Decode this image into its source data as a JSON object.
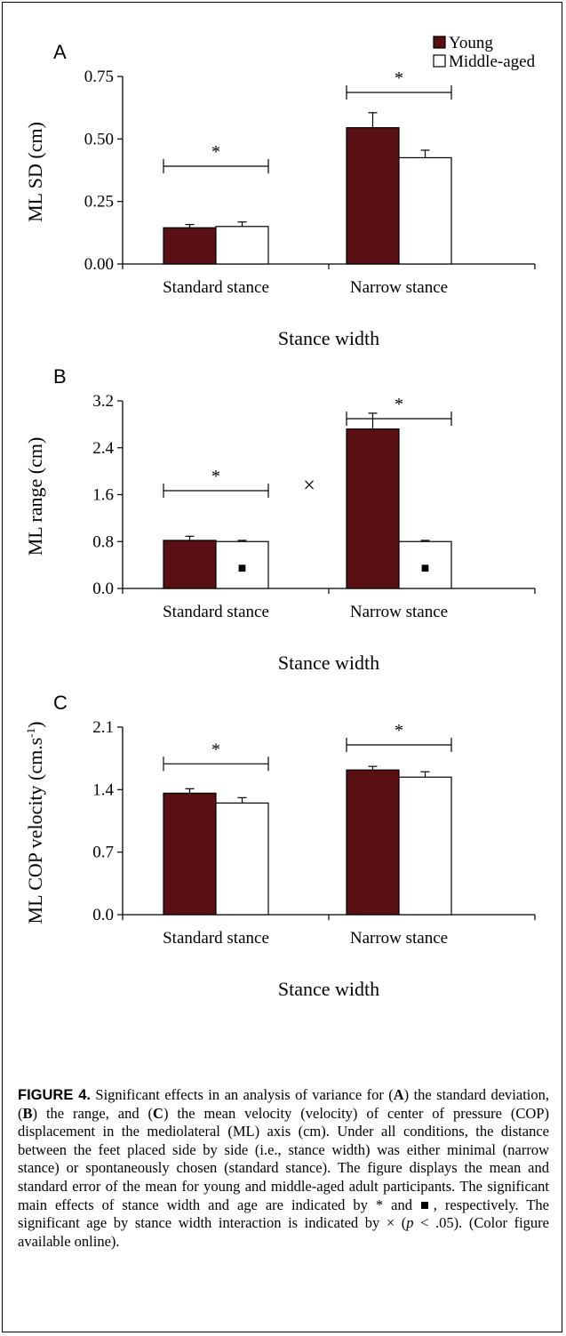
{
  "colors": {
    "young": "#5a0f14",
    "middle_aged": "#ffffff",
    "stroke": "#000000"
  },
  "caption": {
    "label": "FIGURE 4.",
    "parts": [
      " Significant effects in an analysis of variance for (",
      "A",
      ") the standard deviation, (",
      "B",
      ") the range, and (",
      "C",
      ") the mean velocity (velocity) of center of pressure (COP) displacement in the mediolateral (ML) axis (cm). Under all conditions, the distance between the feet placed side by side (i.e., stance width) was either minimal (narrow stance) or spontaneously chosen (standard stance). The figure displays the mean and standard error of the mean for young and middle-aged adult participants. The significant main effects of stance width and age are indicated by * and ■, respectively. The significant age by stance width interaction is indicated by × (",
      "p",
      " < .05). (Color figure available online)."
    ]
  },
  "chart_data": [
    {
      "type": "bar",
      "panel": "A",
      "ylabel": "ML SD (cm)",
      "xlabel": "Stance width",
      "categories": [
        "Standard stance",
        "Narrow stance"
      ],
      "ylim": [
        0,
        0.75
      ],
      "yticks": [
        "0.00",
        "0.25",
        "0.50",
        "0.75"
      ],
      "legend": {
        "position": "top-right",
        "entries": [
          "Young",
          "Middle-aged"
        ]
      },
      "series": [
        {
          "name": "Young",
          "values": [
            0.145,
            0.545
          ],
          "errors": [
            0.013,
            0.06
          ]
        },
        {
          "name": "Middle-aged",
          "values": [
            0.15,
            0.425
          ],
          "errors": [
            0.018,
            0.03
          ]
        }
      ],
      "stance_marker": "*",
      "age_marker": "",
      "interaction_marker": ""
    },
    {
      "type": "bar",
      "panel": "B",
      "ylabel": "ML range (cm)",
      "xlabel": "Stance width",
      "categories": [
        "Standard stance",
        "Narrow stance"
      ],
      "ylim": [
        0,
        3.2
      ],
      "yticks": [
        "0.0",
        "0.8",
        "1.6",
        "2.4",
        "3.2"
      ],
      "series": [
        {
          "name": "Young",
          "values": [
            0.82,
            2.72
          ],
          "errors": [
            0.07,
            0.27
          ]
        },
        {
          "name": "Middle-aged",
          "values": [
            0.8,
            0.8
          ],
          "errors": [
            0.02,
            0.02
          ]
        }
      ],
      "stance_marker": "*",
      "age_marker": "■",
      "interaction_marker": "×"
    },
    {
      "type": "bar",
      "panel": "C",
      "ylabel": "ML COP velocity (cm.s",
      "ylabel_sup": "-1",
      "ylabel_close": ")",
      "xlabel": "Stance width",
      "categories": [
        "Standard stance",
        "Narrow stance"
      ],
      "ylim": [
        0,
        2.1
      ],
      "yticks": [
        "0.0",
        "0.7",
        "1.4",
        "2.1"
      ],
      "series": [
        {
          "name": "Young",
          "values": [
            1.36,
            1.62
          ],
          "errors": [
            0.05,
            0.04
          ]
        },
        {
          "name": "Middle-aged",
          "values": [
            1.25,
            1.54
          ],
          "errors": [
            0.06,
            0.06
          ]
        }
      ],
      "stance_marker": "*",
      "age_marker": "",
      "interaction_marker": ""
    }
  ]
}
